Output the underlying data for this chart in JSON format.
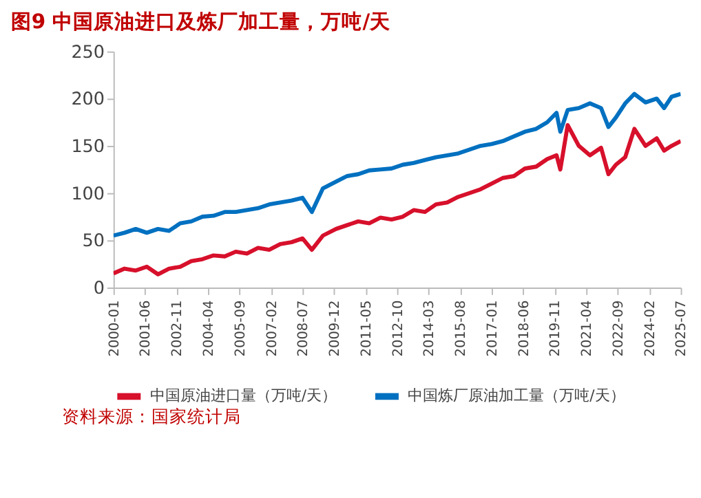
{
  "chart_data": {
    "type": "line",
    "title": "图9  中国原油进口及炼厂加工量，万吨/天",
    "x": [
      "2000-01",
      "2000-07",
      "2001-01",
      "2001-07",
      "2002-01",
      "2002-07",
      "2003-01",
      "2003-07",
      "2004-01",
      "2004-07",
      "2005-01",
      "2005-07",
      "2006-01",
      "2006-07",
      "2007-01",
      "2007-07",
      "2008-01",
      "2008-07",
      "2008-12",
      "2009-06",
      "2010-01",
      "2010-07",
      "2011-01",
      "2011-07",
      "2012-01",
      "2012-07",
      "2013-01",
      "2013-07",
      "2014-01",
      "2014-07",
      "2015-01",
      "2015-07",
      "2016-01",
      "2016-07",
      "2017-01",
      "2017-07",
      "2018-01",
      "2018-07",
      "2019-01",
      "2019-07",
      "2019-12",
      "2020-02",
      "2020-06",
      "2020-12",
      "2021-06",
      "2021-12",
      "2022-04",
      "2022-08",
      "2023-01",
      "2023-06",
      "2023-12",
      "2024-06",
      "2024-10",
      "2025-02",
      "2025-07"
    ],
    "series": [
      {
        "name": "中国原油进口量（万吨/天）",
        "color": "#d7102b",
        "values": [
          15,
          20,
          18,
          22,
          14,
          20,
          22,
          28,
          30,
          34,
          33,
          38,
          36,
          42,
          40,
          46,
          48,
          52,
          40,
          55,
          62,
          66,
          70,
          68,
          74,
          72,
          75,
          82,
          80,
          88,
          90,
          96,
          100,
          104,
          110,
          116,
          118,
          126,
          128,
          136,
          140,
          125,
          172,
          150,
          140,
          148,
          120,
          130,
          138,
          168,
          150,
          158,
          145,
          150,
          155
        ]
      },
      {
        "name": "中国炼厂原油加工量（万吨/天）",
        "color": "#0070c0",
        "values": [
          55,
          58,
          62,
          58,
          62,
          60,
          68,
          70,
          75,
          76,
          80,
          80,
          82,
          84,
          88,
          90,
          92,
          95,
          80,
          105,
          112,
          118,
          120,
          124,
          125,
          126,
          130,
          132,
          135,
          138,
          140,
          142,
          146,
          150,
          152,
          155,
          160,
          165,
          168,
          175,
          185,
          165,
          188,
          190,
          195,
          190,
          170,
          180,
          195,
          205,
          196,
          200,
          190,
          202,
          205
        ]
      }
    ],
    "ylim": [
      0,
      250
    ],
    "yticks": [
      0,
      50,
      100,
      150,
      200,
      250
    ],
    "xlim": [
      "2000-01",
      "2025-07"
    ],
    "xticks": [
      "2000-01",
      "2001-06",
      "2002-11",
      "2004-04",
      "2005-09",
      "2007-02",
      "2008-07",
      "2009-12",
      "2011-05",
      "2012-10",
      "2014-03",
      "2015-08",
      "2017-01",
      "2018-06",
      "2019-11",
      "2021-04",
      "2022-09",
      "2024-02",
      "2025-07"
    ],
    "legend": "bottom",
    "grid": false,
    "marker": "none",
    "line_style": "solid",
    "annotations": [
      "资料来源：国家统计局"
    ]
  }
}
